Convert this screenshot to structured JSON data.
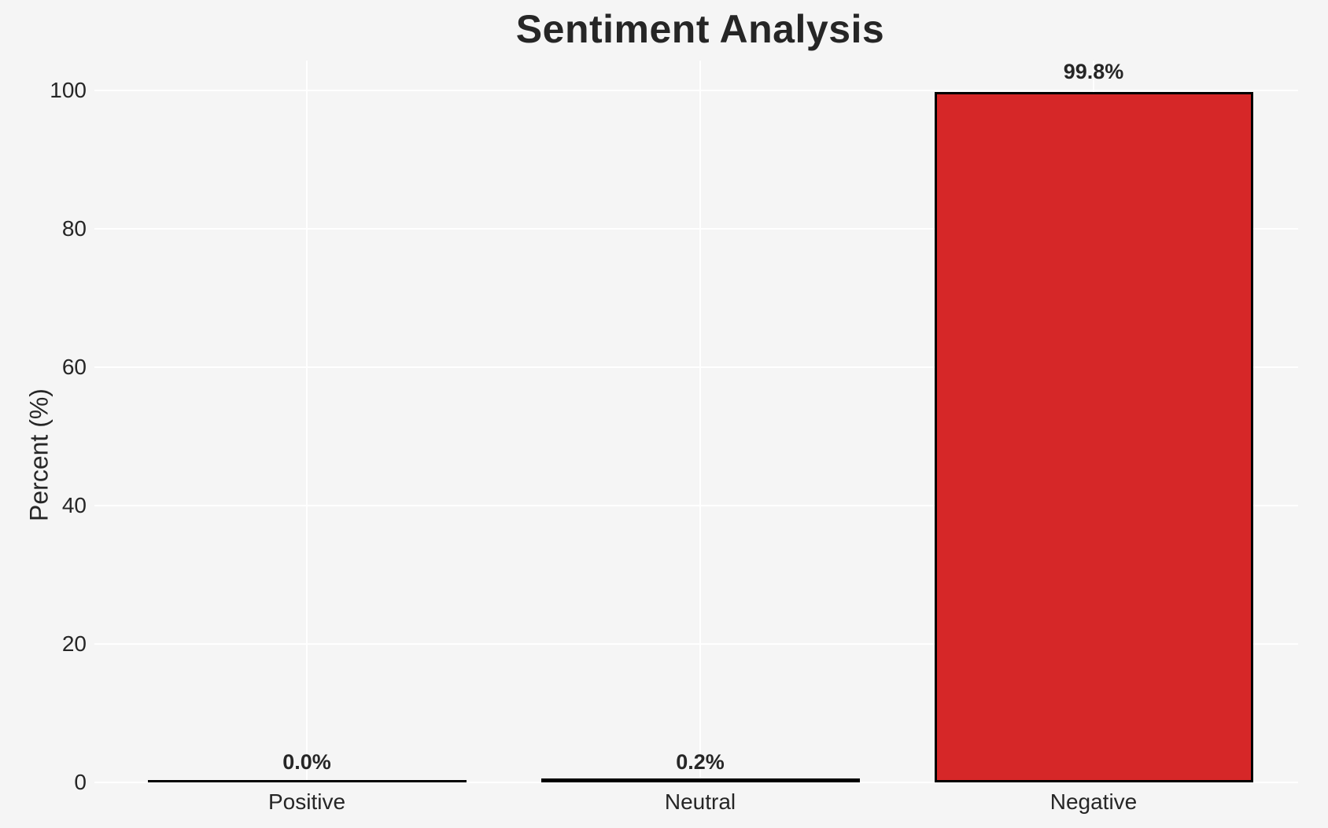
{
  "figure": {
    "background_color": "#f5f5f5",
    "grid_color": "#ffffff",
    "text_color": "#262626"
  },
  "chart_data": {
    "type": "bar",
    "title": "Sentiment Analysis",
    "xlabel": "",
    "ylabel": "Percent (%)",
    "categories": [
      "Positive",
      "Neutral",
      "Negative"
    ],
    "values": [
      0.0,
      0.2,
      99.8
    ],
    "bar_value_labels": [
      "0.0%",
      "0.2%",
      "99.8%"
    ],
    "yticks": [
      0,
      20,
      40,
      60,
      80,
      100
    ],
    "ylim": [
      0,
      105
    ],
    "grid": true,
    "legend_position": "none",
    "bar_fill_color": "#d62728",
    "bar_edge_color": "#000000"
  }
}
